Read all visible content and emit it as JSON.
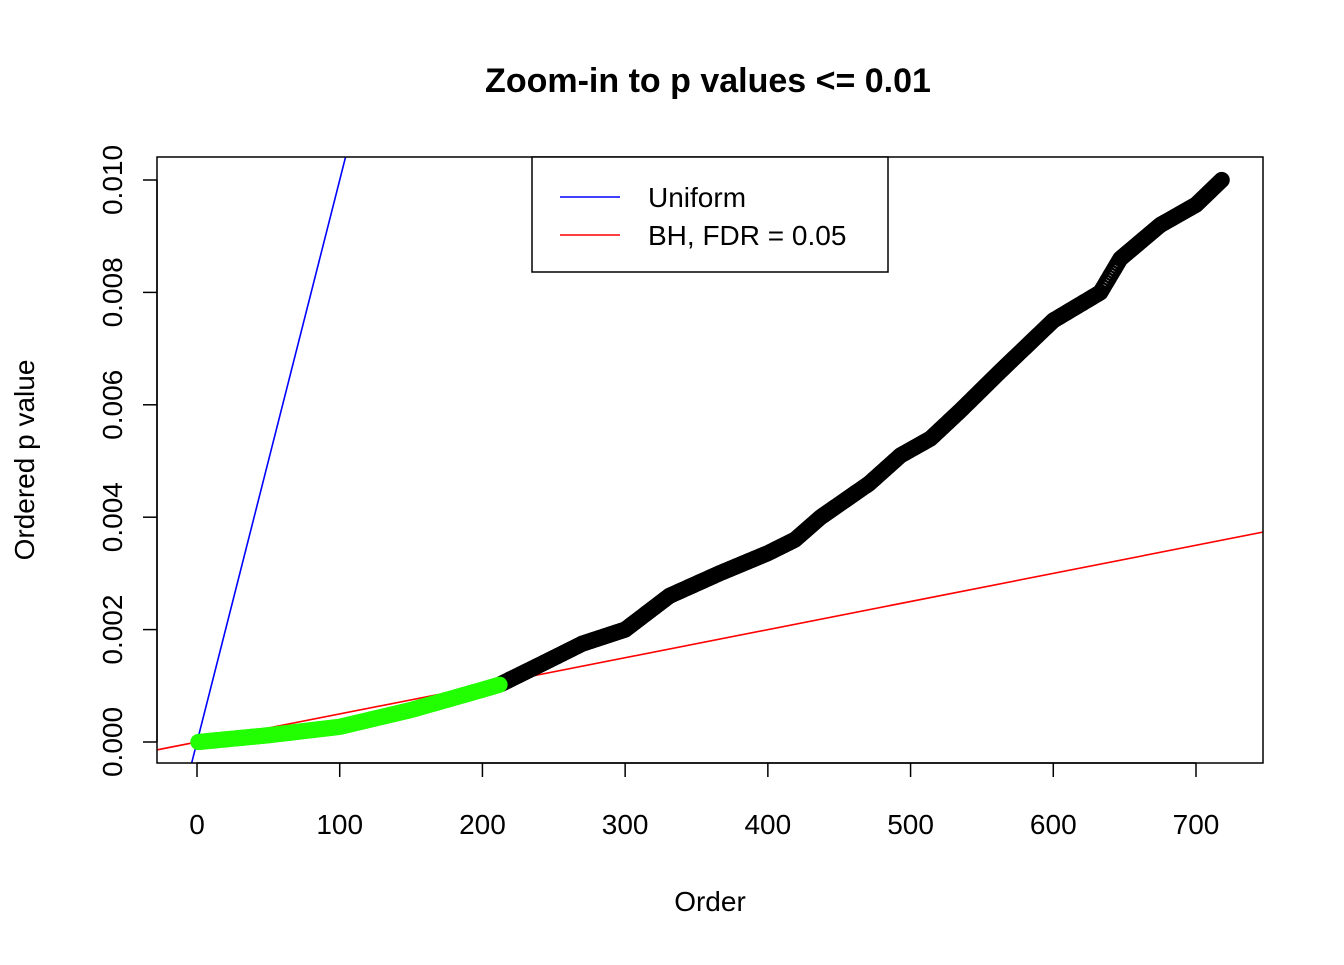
{
  "chart_data": {
    "type": "scatter",
    "title": "Zoom-in to p values <= 0.01",
    "xlabel": "Order",
    "ylabel": "Ordered p value",
    "xlim": [
      -28,
      748
    ],
    "ylim": [
      -0.0004,
      0.0104
    ],
    "x_ticks": [
      0,
      100,
      200,
      300,
      400,
      500,
      600,
      700
    ],
    "x_tick_labels": [
      "0",
      "100",
      "200",
      "300",
      "400",
      "500",
      "600",
      "700"
    ],
    "y_ticks": [
      0,
      0.002,
      0.004,
      0.006,
      0.008,
      0.01
    ],
    "y_tick_labels": [
      "0.000",
      "0.002",
      "0.004",
      "0.006",
      "0.008",
      "0.010"
    ],
    "n_points": 718,
    "significant_count": 212,
    "series_sampled": {
      "x": [
        1,
        50,
        100,
        150,
        200,
        212,
        240,
        270,
        300,
        331,
        366,
        400,
        419,
        437,
        471,
        493,
        514,
        535,
        563,
        600,
        633,
        647,
        675,
        700,
        718
      ],
      "y": [
        0.0,
        0.00012,
        0.00027,
        0.00057,
        0.00093,
        0.00102,
        0.00137,
        0.00175,
        0.002,
        0.0026,
        0.003,
        0.00336,
        0.0036,
        0.004,
        0.0046,
        0.0051,
        0.0054,
        0.0059,
        0.0066,
        0.0075,
        0.008,
        0.0086,
        0.0092,
        0.00956,
        0.01
      ]
    },
    "lines": [
      {
        "name": "Uniform",
        "slope": 0.0001,
        "intercept": 0,
        "color": "#0000FF"
      },
      {
        "name": "BH, FDR = 0.05",
        "slope": 5e-06,
        "intercept": 0,
        "color": "#FF0000"
      }
    ],
    "point_colors": {
      "significant": "#22FF00",
      "other": "#000000"
    },
    "legend": {
      "placement": "top-center",
      "entries": [
        {
          "label": "Uniform",
          "color": "#0000FF"
        },
        {
          "label": "BH, FDR = 0.05",
          "color": "#FF0000"
        }
      ]
    }
  }
}
